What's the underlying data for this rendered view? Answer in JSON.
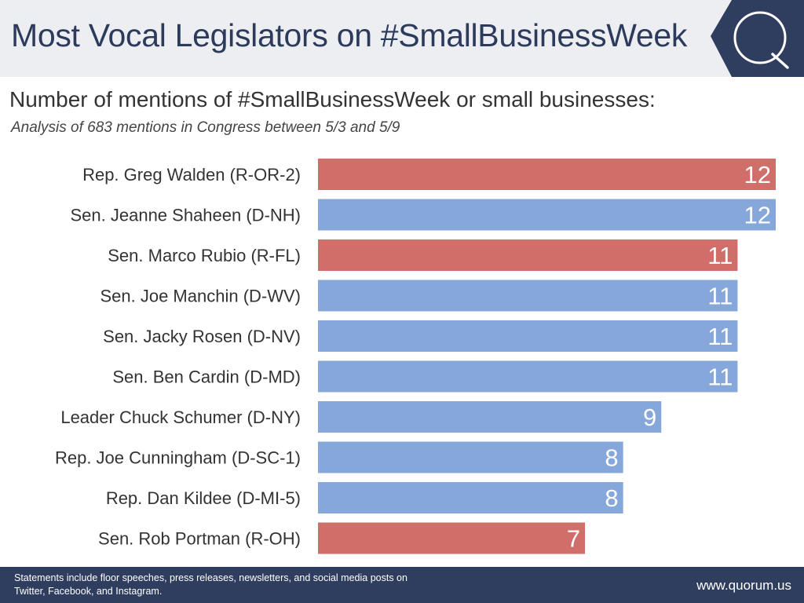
{
  "header": {
    "title": "Most Vocal Legislators on #SmallBusinessWeek",
    "logo": "quorum-q-logo"
  },
  "subtitle": "Number of mentions of #SmallBusinessWeek or small businesses:",
  "note": "Analysis of 683 mentions in Congress between 5/3 and 5/9",
  "colors": {
    "republican": "#d06e6a",
    "democrat": "#86a7d9",
    "header_bg": "#edeef1",
    "navy": "#2f3d5e"
  },
  "chart_data": {
    "type": "bar",
    "orientation": "horizontal",
    "categories": [
      "Rep. Greg Walden (R-OR-2)",
      "Sen. Jeanne Shaheen (D-NH)",
      "Sen. Marco Rubio (R-FL)",
      "Sen. Joe Manchin (D-WV)",
      "Sen. Jacky Rosen (D-NV)",
      "Sen. Ben Cardin (D-MD)",
      "Leader Chuck Schumer (D-NY)",
      "Rep. Joe Cunningham (D-SC-1)",
      "Rep. Dan Kildee (D-MI-5)",
      "Sen. Rob Portman (R-OH)"
    ],
    "values": [
      12,
      12,
      11,
      11,
      11,
      11,
      9,
      8,
      8,
      7
    ],
    "party": [
      "R",
      "D",
      "R",
      "D",
      "D",
      "D",
      "D",
      "D",
      "D",
      "R"
    ],
    "xlim": [
      0,
      12
    ],
    "grid": false,
    "legend": "none"
  },
  "footer": {
    "note": "Statements include floor speeches, press releases, newsletters, and social media posts on Twitter, Facebook, and Instagram.",
    "url": "www.quorum.us"
  }
}
